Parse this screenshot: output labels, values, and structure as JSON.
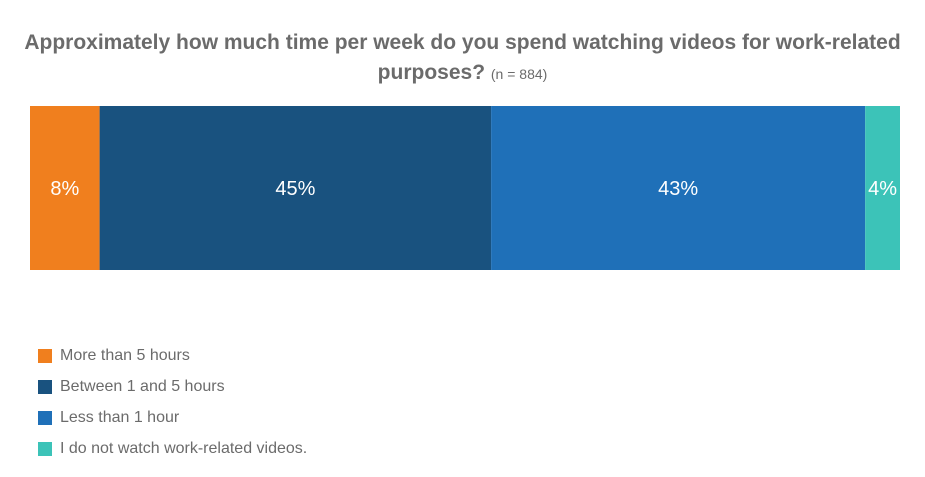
{
  "chart_data": {
    "type": "bar",
    "orientation": "horizontal-stacked",
    "title": "Approximately how much time per week do you spend watching videos for work-related purposes?",
    "subtitle": "(n = 884)",
    "series": [
      {
        "name": "More than 5 hours",
        "value": 8,
        "label": "8%",
        "color": "#f07f1e"
      },
      {
        "name": "Between 1 and 5 hours",
        "value": 45,
        "label": "45%",
        "color": "#19527f"
      },
      {
        "name": "Less than 1 hour",
        "value": 43,
        "label": "43%",
        "color": "#1f70b8"
      },
      {
        "name": "I do not watch work-related videos.",
        "value": 4,
        "label": "4%",
        "color": "#3cc3b8"
      }
    ],
    "total": 100,
    "legend_position": "bottom-left"
  }
}
